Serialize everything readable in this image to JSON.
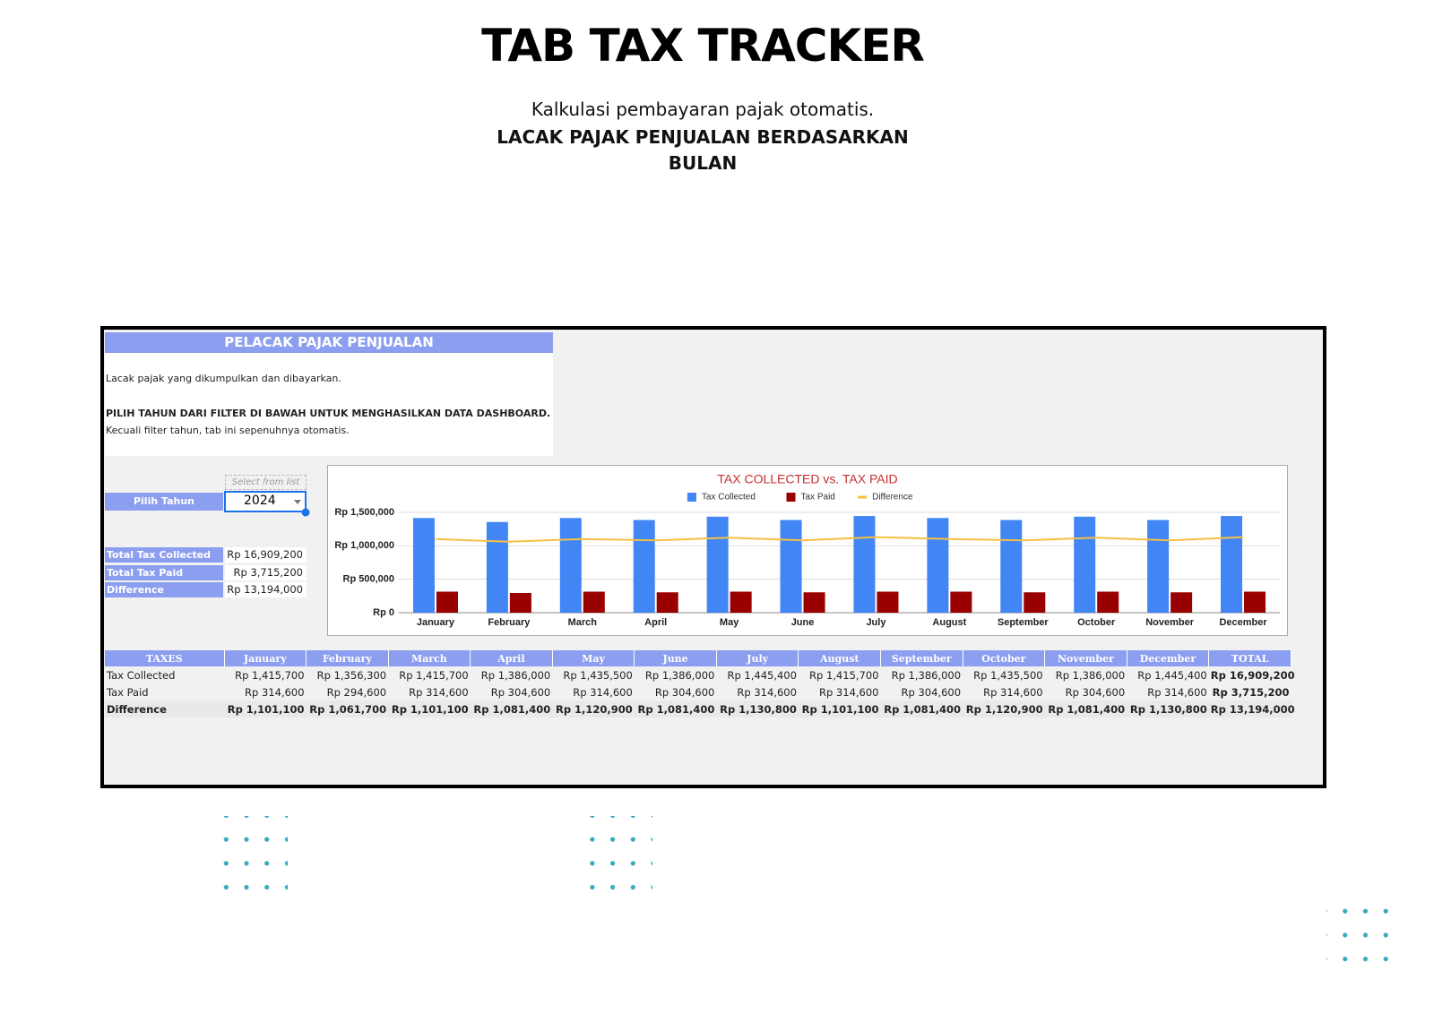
{
  "header": {
    "title": "TAB TAX TRACKER",
    "subtitle": "Kalkulasi pembayaran pajak otomatis.",
    "tagline": "LACAK PAJAK PENJUALAN BERDASARKAN BULAN"
  },
  "panel": {
    "title": "PELACAK PAJAK PENJUALAN",
    "description": "Lacak pajak yang dikumpulkan dan dibayarkan.",
    "instruction": "PILIH TAHUN DARI FILTER DI BAWAH UNTUK MENGHASILKAN DATA DASHBOARD.",
    "note": "Kecuali filter tahun, tab ini sepenuhnya otomatis."
  },
  "filter": {
    "hint": "Select from list",
    "label": "Pilih Tahun",
    "value": "2024"
  },
  "summary": [
    {
      "label": "Total Tax Collected",
      "value": "Rp 16,909,200"
    },
    {
      "label": "Total Tax Paid",
      "value": "Rp 3,715,200"
    },
    {
      "label": "Difference",
      "value": "Rp 13,194,000"
    }
  ],
  "chart_data": {
    "type": "bar",
    "title": "TAX COLLECTED vs. TAX PAID",
    "categories": [
      "January",
      "February",
      "March",
      "April",
      "May",
      "June",
      "July",
      "August",
      "September",
      "October",
      "November",
      "December"
    ],
    "series": [
      {
        "name": "Tax Collected",
        "color": "#4285f4",
        "values": [
          1415700,
          1356300,
          1415700,
          1386000,
          1435500,
          1386000,
          1445400,
          1415700,
          1386000,
          1435500,
          1386000,
          1445400
        ]
      },
      {
        "name": "Tax Paid",
        "color": "#990000",
        "values": [
          314600,
          294600,
          314600,
          304600,
          314600,
          304600,
          314600,
          314600,
          304600,
          314600,
          304600,
          314600
        ]
      },
      {
        "name": "Difference",
        "color": "#f6c142",
        "type": "line",
        "values": [
          1101100,
          1061700,
          1101100,
          1081400,
          1120900,
          1081400,
          1130800,
          1101100,
          1081400,
          1120900,
          1081400,
          1130800
        ]
      }
    ],
    "ylim": [
      0,
      1500000
    ],
    "yticks": [
      {
        "value": 0,
        "label": "Rp 0"
      },
      {
        "value": 500000,
        "label": "Rp 500,000"
      },
      {
        "value": 1000000,
        "label": "Rp 1,000,000"
      },
      {
        "value": 1500000,
        "label": "Rp 1,500,000"
      }
    ],
    "grid": true,
    "legend": "top"
  },
  "table": {
    "header": [
      "TAXES",
      "January",
      "February",
      "March",
      "April",
      "May",
      "June",
      "July",
      "August",
      "September",
      "October",
      "November",
      "December",
      "TOTAL"
    ],
    "rows": [
      [
        "Tax Collected",
        "Rp 1,415,700",
        "Rp 1,356,300",
        "Rp 1,415,700",
        "Rp 1,386,000",
        "Rp 1,435,500",
        "Rp 1,386,000",
        "Rp 1,445,400",
        "Rp 1,415,700",
        "Rp 1,386,000",
        "Rp 1,435,500",
        "Rp 1,386,000",
        "Rp 1,445,400",
        "Rp 16,909,200"
      ],
      [
        "Tax Paid",
        "Rp 314,600",
        "Rp 294,600",
        "Rp 314,600",
        "Rp 304,600",
        "Rp 314,600",
        "Rp 304,600",
        "Rp 314,600",
        "Rp 314,600",
        "Rp 304,600",
        "Rp 314,600",
        "Rp 304,600",
        "Rp 314,600",
        "Rp 3,715,200"
      ],
      [
        "Difference",
        "Rp 1,101,100",
        "Rp 1,061,700",
        "Rp 1,101,100",
        "Rp 1,081,400",
        "Rp 1,120,900",
        "Rp 1,081,400",
        "Rp 1,130,800",
        "Rp 1,101,100",
        "Rp 1,081,400",
        "Rp 1,120,900",
        "Rp 1,081,400",
        "Rp 1,130,800",
        "Rp 13,194,000"
      ]
    ]
  }
}
